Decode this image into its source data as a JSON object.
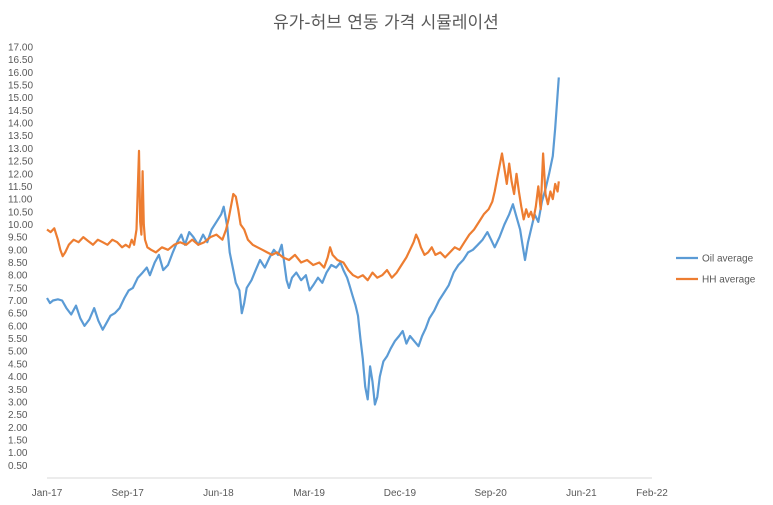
{
  "chart_data": {
    "type": "line",
    "title": "유가-허브 연동 가격 시뮬레이션",
    "xlabel": "",
    "ylabel": "",
    "ylim": [
      0,
      17
    ],
    "y_ticks": [
      "0.50",
      "1.00",
      "1.50",
      "2.00",
      "2.50",
      "3.00",
      "3.50",
      "4.00",
      "4.50",
      "5.00",
      "5.50",
      "6.00",
      "6.50",
      "7.00",
      "7.50",
      "8.00",
      "8.50",
      "9.00",
      "9.50",
      "10.00",
      "10.50",
      "11.00",
      "11.50",
      "12.00",
      "12.50",
      "13.00",
      "13.50",
      "14.00",
      "14.50",
      "15.00",
      "15.50",
      "16.00",
      "16.50",
      "17.00"
    ],
    "x_ticks": [
      "Jan-17",
      "Sep-17",
      "Jun-18",
      "Mar-19",
      "Dec-19",
      "Sep-20",
      "Jun-21",
      "Feb-22"
    ],
    "x_tick_positions": [
      0,
      0.1333,
      0.2833,
      0.4333,
      0.5833,
      0.7333,
      0.8833,
      1.0
    ],
    "x_range": [
      "Jan-17",
      "Feb-22"
    ],
    "grid": false,
    "legend_position": "right",
    "series": [
      {
        "name": "Oil average",
        "color": "#5B9BD5",
        "points": [
          [
            0.0,
            7.1
          ],
          [
            0.005,
            6.9
          ],
          [
            0.01,
            7.0
          ],
          [
            0.018,
            7.05
          ],
          [
            0.025,
            7.0
          ],
          [
            0.032,
            6.7
          ],
          [
            0.04,
            6.45
          ],
          [
            0.048,
            6.8
          ],
          [
            0.055,
            6.3
          ],
          [
            0.062,
            6.0
          ],
          [
            0.07,
            6.25
          ],
          [
            0.078,
            6.7
          ],
          [
            0.085,
            6.2
          ],
          [
            0.092,
            5.85
          ],
          [
            0.098,
            6.1
          ],
          [
            0.105,
            6.4
          ],
          [
            0.112,
            6.5
          ],
          [
            0.12,
            6.7
          ],
          [
            0.128,
            7.1
          ],
          [
            0.135,
            7.4
          ],
          [
            0.142,
            7.5
          ],
          [
            0.15,
            7.9
          ],
          [
            0.158,
            8.1
          ],
          [
            0.165,
            8.3
          ],
          [
            0.17,
            8.0
          ],
          [
            0.178,
            8.5
          ],
          [
            0.185,
            8.8
          ],
          [
            0.192,
            8.2
          ],
          [
            0.2,
            8.4
          ],
          [
            0.208,
            8.9
          ],
          [
            0.215,
            9.3
          ],
          [
            0.222,
            9.6
          ],
          [
            0.228,
            9.2
          ],
          [
            0.235,
            9.7
          ],
          [
            0.242,
            9.5
          ],
          [
            0.25,
            9.2
          ],
          [
            0.258,
            9.6
          ],
          [
            0.265,
            9.3
          ],
          [
            0.272,
            9.8
          ],
          [
            0.28,
            10.1
          ],
          [
            0.288,
            10.4
          ],
          [
            0.292,
            10.7
          ],
          [
            0.298,
            9.9
          ],
          [
            0.302,
            8.9
          ],
          [
            0.308,
            8.2
          ],
          [
            0.312,
            7.7
          ],
          [
            0.318,
            7.4
          ],
          [
            0.322,
            6.5
          ],
          [
            0.326,
            6.9
          ],
          [
            0.33,
            7.5
          ],
          [
            0.338,
            7.8
          ],
          [
            0.345,
            8.2
          ],
          [
            0.352,
            8.6
          ],
          [
            0.36,
            8.3
          ],
          [
            0.368,
            8.7
          ],
          [
            0.375,
            9.0
          ],
          [
            0.382,
            8.8
          ],
          [
            0.388,
            9.2
          ],
          [
            0.392,
            8.5
          ],
          [
            0.396,
            7.8
          ],
          [
            0.4,
            7.5
          ],
          [
            0.405,
            7.9
          ],
          [
            0.412,
            8.1
          ],
          [
            0.42,
            7.8
          ],
          [
            0.428,
            8.0
          ],
          [
            0.434,
            7.4
          ],
          [
            0.44,
            7.6
          ],
          [
            0.448,
            7.9
          ],
          [
            0.455,
            7.7
          ],
          [
            0.462,
            8.1
          ],
          [
            0.47,
            8.4
          ],
          [
            0.478,
            8.3
          ],
          [
            0.485,
            8.5
          ],
          [
            0.49,
            8.2
          ],
          [
            0.496,
            7.9
          ],
          [
            0.5,
            7.6
          ],
          [
            0.505,
            7.2
          ],
          [
            0.51,
            6.8
          ],
          [
            0.514,
            6.4
          ],
          [
            0.518,
            5.5
          ],
          [
            0.522,
            4.7
          ],
          [
            0.526,
            3.6
          ],
          [
            0.53,
            3.1
          ],
          [
            0.534,
            4.4
          ],
          [
            0.538,
            3.8
          ],
          [
            0.542,
            2.9
          ],
          [
            0.546,
            3.2
          ],
          [
            0.55,
            4.0
          ],
          [
            0.556,
            4.6
          ],
          [
            0.562,
            4.8
          ],
          [
            0.568,
            5.1
          ],
          [
            0.575,
            5.4
          ],
          [
            0.582,
            5.6
          ],
          [
            0.588,
            5.8
          ],
          [
            0.594,
            5.3
          ],
          [
            0.6,
            5.6
          ],
          [
            0.607,
            5.4
          ],
          [
            0.614,
            5.2
          ],
          [
            0.62,
            5.6
          ],
          [
            0.626,
            5.9
          ],
          [
            0.632,
            6.3
          ],
          [
            0.64,
            6.6
          ],
          [
            0.648,
            7.0
          ],
          [
            0.656,
            7.3
          ],
          [
            0.664,
            7.6
          ],
          [
            0.672,
            8.1
          ],
          [
            0.68,
            8.4
          ],
          [
            0.688,
            8.6
          ],
          [
            0.696,
            8.9
          ],
          [
            0.704,
            9.0
          ],
          [
            0.712,
            9.2
          ],
          [
            0.72,
            9.4
          ],
          [
            0.728,
            9.7
          ],
          [
            0.734,
            9.4
          ],
          [
            0.74,
            9.1
          ],
          [
            0.748,
            9.5
          ],
          [
            0.756,
            10.0
          ],
          [
            0.764,
            10.4
          ],
          [
            0.77,
            10.8
          ],
          [
            0.776,
            10.3
          ],
          [
            0.782,
            9.8
          ],
          [
            0.786,
            9.2
          ],
          [
            0.79,
            8.6
          ],
          [
            0.795,
            9.3
          ],
          [
            0.8,
            9.8
          ],
          [
            0.806,
            10.4
          ],
          [
            0.812,
            10.1
          ],
          [
            0.818,
            10.9
          ],
          [
            0.824,
            11.4
          ],
          [
            0.83,
            12.0
          ],
          [
            0.836,
            12.7
          ],
          [
            0.84,
            13.8
          ],
          [
            0.843,
            14.8
          ],
          [
            0.846,
            15.8
          ]
        ]
      },
      {
        "name": "HH average",
        "color": "#ED7D31",
        "points": [
          [
            0.0,
            9.8
          ],
          [
            0.006,
            9.7
          ],
          [
            0.012,
            9.85
          ],
          [
            0.018,
            9.4
          ],
          [
            0.022,
            9.0
          ],
          [
            0.026,
            8.75
          ],
          [
            0.03,
            8.9
          ],
          [
            0.036,
            9.2
          ],
          [
            0.044,
            9.4
          ],
          [
            0.052,
            9.3
          ],
          [
            0.06,
            9.5
          ],
          [
            0.068,
            9.35
          ],
          [
            0.076,
            9.2
          ],
          [
            0.084,
            9.4
          ],
          [
            0.092,
            9.3
          ],
          [
            0.1,
            9.2
          ],
          [
            0.108,
            9.4
          ],
          [
            0.116,
            9.3
          ],
          [
            0.124,
            9.1
          ],
          [
            0.13,
            9.2
          ],
          [
            0.136,
            9.1
          ],
          [
            0.14,
            9.4
          ],
          [
            0.144,
            9.2
          ],
          [
            0.148,
            9.8
          ],
          [
            0.152,
            12.9
          ],
          [
            0.154,
            10.1
          ],
          [
            0.156,
            9.6
          ],
          [
            0.158,
            12.1
          ],
          [
            0.16,
            10.0
          ],
          [
            0.162,
            9.4
          ],
          [
            0.166,
            9.1
          ],
          [
            0.172,
            9.0
          ],
          [
            0.18,
            8.9
          ],
          [
            0.19,
            9.1
          ],
          [
            0.2,
            9.0
          ],
          [
            0.21,
            9.2
          ],
          [
            0.22,
            9.3
          ],
          [
            0.23,
            9.2
          ],
          [
            0.24,
            9.4
          ],
          [
            0.25,
            9.2
          ],
          [
            0.26,
            9.3
          ],
          [
            0.27,
            9.5
          ],
          [
            0.28,
            9.6
          ],
          [
            0.29,
            9.4
          ],
          [
            0.296,
            9.8
          ],
          [
            0.3,
            10.2
          ],
          [
            0.304,
            10.7
          ],
          [
            0.308,
            11.2
          ],
          [
            0.312,
            11.1
          ],
          [
            0.316,
            10.6
          ],
          [
            0.32,
            10.0
          ],
          [
            0.326,
            9.8
          ],
          [
            0.332,
            9.4
          ],
          [
            0.34,
            9.2
          ],
          [
            0.348,
            9.1
          ],
          [
            0.356,
            9.0
          ],
          [
            0.364,
            8.9
          ],
          [
            0.372,
            8.8
          ],
          [
            0.38,
            8.9
          ],
          [
            0.39,
            8.7
          ],
          [
            0.4,
            8.6
          ],
          [
            0.41,
            8.8
          ],
          [
            0.42,
            8.5
          ],
          [
            0.43,
            8.6
          ],
          [
            0.44,
            8.4
          ],
          [
            0.45,
            8.5
          ],
          [
            0.458,
            8.3
          ],
          [
            0.464,
            8.7
          ],
          [
            0.468,
            9.1
          ],
          [
            0.472,
            8.8
          ],
          [
            0.48,
            8.6
          ],
          [
            0.49,
            8.5
          ],
          [
            0.498,
            8.2
          ],
          [
            0.506,
            8.0
          ],
          [
            0.514,
            7.9
          ],
          [
            0.522,
            8.0
          ],
          [
            0.53,
            7.8
          ],
          [
            0.538,
            8.1
          ],
          [
            0.546,
            7.9
          ],
          [
            0.554,
            8.0
          ],
          [
            0.562,
            8.2
          ],
          [
            0.57,
            7.9
          ],
          [
            0.578,
            8.1
          ],
          [
            0.586,
            8.4
          ],
          [
            0.594,
            8.7
          ],
          [
            0.6,
            9.0
          ],
          [
            0.606,
            9.3
          ],
          [
            0.61,
            9.6
          ],
          [
            0.614,
            9.4
          ],
          [
            0.618,
            9.1
          ],
          [
            0.624,
            8.8
          ],
          [
            0.63,
            8.9
          ],
          [
            0.636,
            9.1
          ],
          [
            0.642,
            8.8
          ],
          [
            0.65,
            8.9
          ],
          [
            0.658,
            8.7
          ],
          [
            0.666,
            8.9
          ],
          [
            0.674,
            9.1
          ],
          [
            0.682,
            9.0
          ],
          [
            0.69,
            9.3
          ],
          [
            0.698,
            9.6
          ],
          [
            0.706,
            9.8
          ],
          [
            0.714,
            10.1
          ],
          [
            0.722,
            10.4
          ],
          [
            0.73,
            10.6
          ],
          [
            0.736,
            10.9
          ],
          [
            0.74,
            11.3
          ],
          [
            0.744,
            11.8
          ],
          [
            0.748,
            12.3
          ],
          [
            0.752,
            12.8
          ],
          [
            0.756,
            12.2
          ],
          [
            0.76,
            11.6
          ],
          [
            0.764,
            12.4
          ],
          [
            0.768,
            11.7
          ],
          [
            0.772,
            11.2
          ],
          [
            0.776,
            12.0
          ],
          [
            0.78,
            11.3
          ],
          [
            0.784,
            10.7
          ],
          [
            0.788,
            10.2
          ],
          [
            0.792,
            10.6
          ],
          [
            0.796,
            10.3
          ],
          [
            0.8,
            10.5
          ],
          [
            0.804,
            10.2
          ],
          [
            0.808,
            10.7
          ],
          [
            0.812,
            11.5
          ],
          [
            0.816,
            10.6
          ],
          [
            0.82,
            12.8
          ],
          [
            0.824,
            11.2
          ],
          [
            0.828,
            10.8
          ],
          [
            0.832,
            11.3
          ],
          [
            0.836,
            11.0
          ],
          [
            0.84,
            11.6
          ],
          [
            0.844,
            11.3
          ],
          [
            0.846,
            11.7
          ]
        ]
      }
    ]
  }
}
